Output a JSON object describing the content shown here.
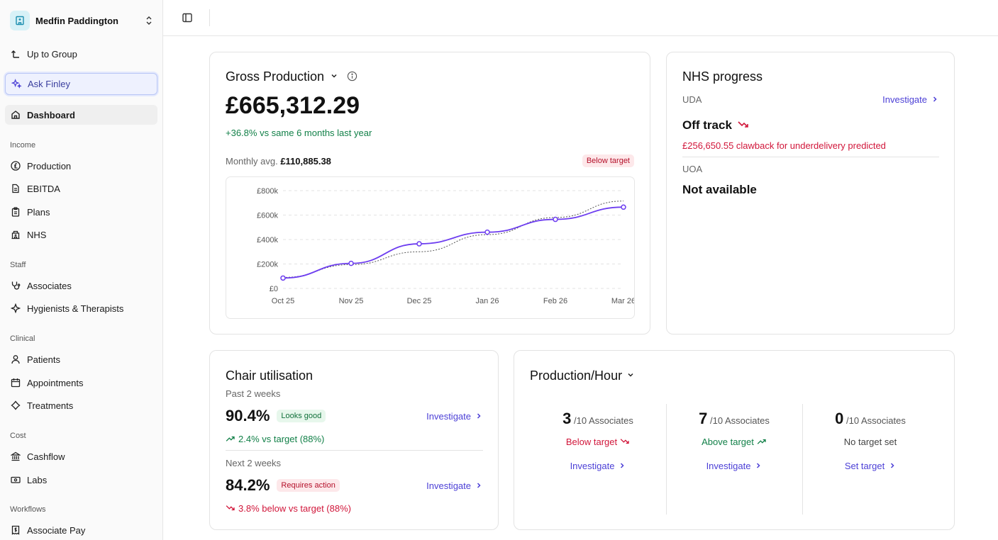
{
  "org": {
    "name": "Medfin Paddington"
  },
  "sidebar": {
    "up_to_group": "Up to Group",
    "ask": "Ask Finley",
    "dashboard": "Dashboard",
    "sections": {
      "income": "Income",
      "staff": "Staff",
      "clinical": "Clinical",
      "cost": "Cost",
      "workflows": "Workflows"
    },
    "items": {
      "production": "Production",
      "ebitda": "EBITDA",
      "plans": "Plans",
      "nhs": "NHS",
      "associates": "Associates",
      "hygienists": "Hygienists & Therapists",
      "patients": "Patients",
      "appointments": "Appointments",
      "treatments": "Treatments",
      "cashflow": "Cashflow",
      "labs": "Labs",
      "associate_pay": "Associate Pay"
    }
  },
  "gross": {
    "title": "Gross Production",
    "value": "£665,312.29",
    "change": "+36.8% vs same 6 months last year",
    "monthly_label": "Monthly avg.",
    "monthly_value": "£110,885.38",
    "badge": "Below target"
  },
  "chart_data": {
    "type": "line",
    "x": [
      "Oct 25",
      "Nov 25",
      "Dec 25",
      "Jan 26",
      "Feb 26",
      "Mar 26"
    ],
    "series": [
      {
        "values": [
          85000,
          205000,
          365000,
          460000,
          565000,
          665000
        ]
      },
      {
        "values": [
          90000,
          195000,
          300000,
          440000,
          580000,
          715000
        ]
      }
    ],
    "yticks": [
      "£0",
      "£200k",
      "£400k",
      "£600k",
      "£800k"
    ],
    "ylim": [
      0,
      800000
    ],
    "grid": true,
    "colors": {
      "actual": "#6d3df0",
      "target": "#555555"
    }
  },
  "nhs": {
    "title": "NHS progress",
    "uda_label": "UDA",
    "investigate": "Investigate",
    "status": "Off track",
    "clawback": "£256,650.55 clawback for underdelivery predicted",
    "uoa_label": "UOA",
    "uoa_status": "Not available"
  },
  "chair": {
    "title": "Chair utilisation",
    "past_label": "Past 2 weeks",
    "past_value": "90.4%",
    "past_badge": "Looks good",
    "past_change": "2.4% vs target (88%)",
    "next_label": "Next 2 weeks",
    "next_value": "84.2%",
    "next_badge": "Requires action",
    "next_change": "3.8% below vs target (88%)",
    "investigate": "Investigate"
  },
  "prodhour": {
    "title": "Production/Hour",
    "cols": [
      {
        "count": "3",
        "of": "/10 Associates",
        "status": "Below target",
        "action": "Investigate"
      },
      {
        "count": "7",
        "of": "/10 Associates",
        "status": "Above target",
        "action": "Investigate"
      },
      {
        "count": "0",
        "of": "/10 Associates",
        "status": "No target set",
        "action": "Set target"
      }
    ]
  }
}
